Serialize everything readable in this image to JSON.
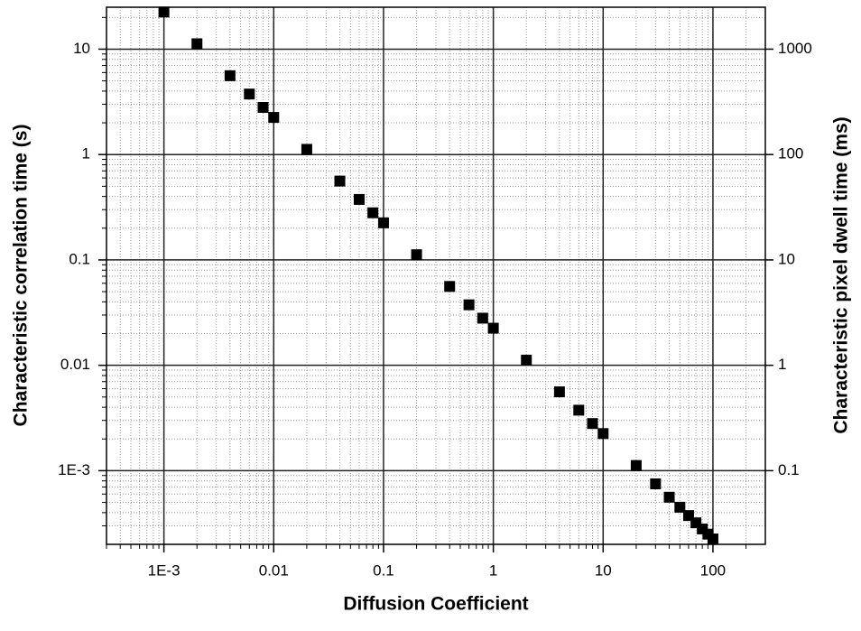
{
  "chart_data": {
    "type": "scatter",
    "xlabel": "Diffusion Coefficient",
    "ylabel": "Characteristic correlation time (s)",
    "y2label": "Characteristic pixel dwell time (ms)",
    "x": [
      0.001,
      0.002,
      0.004,
      0.006,
      0.008,
      0.01,
      0.02,
      0.04,
      0.06,
      0.08,
      0.1,
      0.2,
      0.4,
      0.6,
      0.8,
      1,
      2,
      4,
      6,
      8,
      10,
      20,
      30,
      40,
      50,
      60,
      70,
      80,
      90,
      100
    ],
    "values": [
      22.5,
      11.25,
      5.6,
      3.75,
      2.8,
      2.25,
      1.12,
      0.56,
      0.375,
      0.28,
      0.225,
      0.112,
      0.056,
      0.0375,
      0.028,
      0.0225,
      0.0112,
      0.0056,
      0.00375,
      0.0028,
      0.00225,
      0.00112,
      0.00075,
      0.00056,
      0.00045,
      0.000375,
      0.00032,
      0.00028,
      0.00025,
      0.000225
    ],
    "color": "#000000",
    "xscale": "log",
    "yscale": "log",
    "xlim": [
      0.0003,
      300
    ],
    "ylim": [
      0.0002,
      25
    ],
    "y2lim": [
      0.02,
      2500
    ],
    "xticks": [
      {
        "value": 0.001,
        "label": "1E-3"
      },
      0.01,
      0.1,
      1,
      10,
      100
    ],
    "yticks": [
      {
        "value": 0.001,
        "label": "1E-3"
      },
      0.01,
      0.1,
      1,
      10
    ],
    "y2ticks": [
      0.1,
      1,
      10,
      100,
      1000
    ],
    "grid": true,
    "minor_grid": true
  }
}
